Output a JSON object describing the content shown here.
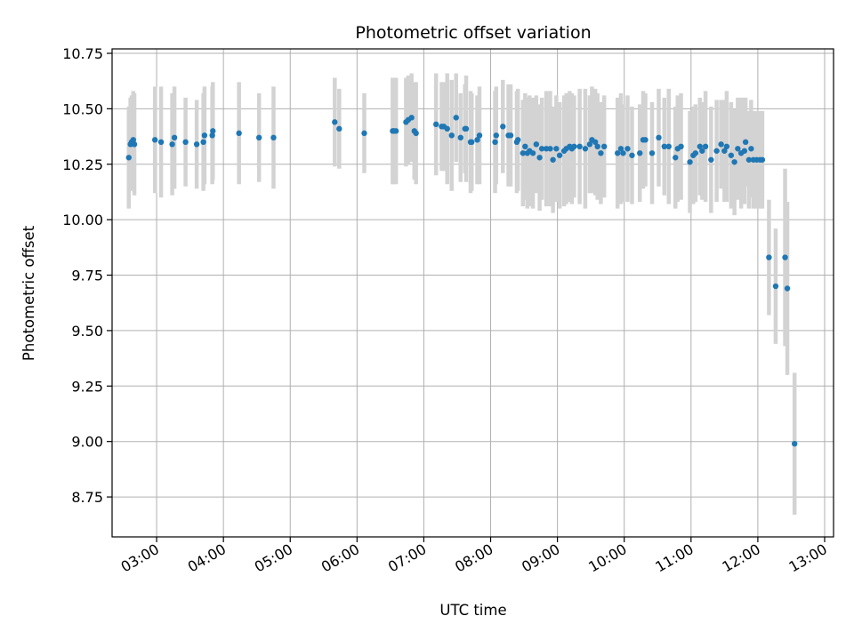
{
  "chart_data": {
    "type": "scatter",
    "title": "Photometric offset variation",
    "xlabel": "UTC time",
    "ylabel": "Photometric offset",
    "x_unit": "minutes since 00:00 UTC",
    "xlim": [
      140,
      788
    ],
    "ylim": [
      8.57,
      10.77
    ],
    "grid": true,
    "x_ticks": [
      {
        "value": 180,
        "label": "03:00"
      },
      {
        "value": 240,
        "label": "04:00"
      },
      {
        "value": 300,
        "label": "05:00"
      },
      {
        "value": 360,
        "label": "06:00"
      },
      {
        "value": 420,
        "label": "07:00"
      },
      {
        "value": 480,
        "label": "08:00"
      },
      {
        "value": 540,
        "label": "09:00"
      },
      {
        "value": 600,
        "label": "10:00"
      },
      {
        "value": 660,
        "label": "11:00"
      },
      {
        "value": 720,
        "label": "12:00"
      },
      {
        "value": 780,
        "label": "13:00"
      }
    ],
    "y_ticks": [
      {
        "value": 8.75,
        "label": "8.75"
      },
      {
        "value": 9.0,
        "label": "9.00"
      },
      {
        "value": 9.25,
        "label": "9.25"
      },
      {
        "value": 9.5,
        "label": "9.50"
      },
      {
        "value": 9.75,
        "label": "9.75"
      },
      {
        "value": 10.0,
        "label": "10.00"
      },
      {
        "value": 10.25,
        "label": "10.25"
      },
      {
        "value": 10.5,
        "label": "10.50"
      },
      {
        "value": 10.75,
        "label": "10.75"
      }
    ],
    "colors": {
      "point": "#1f77b4",
      "errorbar": "#d3d3d3",
      "grid": "#b0b0b0"
    },
    "series": [
      {
        "name": "offset",
        "x": [
          155.0,
          156.5,
          157.5,
          159.0,
          160.0,
          178.5,
          184.0,
          194.0,
          196.0,
          206.0,
          216.0,
          222.0,
          223.0,
          230.0,
          230.5,
          254.0,
          272.0,
          285.0,
          340.0,
          344.0,
          366.5,
          392.0,
          393.0,
          395.0,
          404.0,
          406.0,
          409.0,
          411.5,
          413.0,
          431.0,
          436.0,
          438.0,
          441.0,
          445.0,
          449.0,
          453.0,
          457.0,
          458.0,
          462.0,
          463.0,
          468.0,
          470.0,
          484.0,
          485.0,
          491.0,
          496.0,
          498.0,
          503.5,
          504.5,
          509.0,
          511.0,
          513.0,
          515.0,
          518.0,
          521.0,
          524.0,
          526.0,
          530.0,
          533.5,
          536.0,
          539.0,
          542.0,
          546.0,
          548.0,
          551.0,
          553.0,
          555.0,
          560.0,
          565.0,
          569.0,
          571.0,
          574.0,
          576.0,
          579.0,
          582.0,
          594.0,
          597.0,
          599.0,
          603.0,
          607.0,
          614.0,
          617.0,
          619.0,
          625.0,
          631.0,
          636.0,
          640.0,
          646.0,
          648.0,
          651.0,
          659.0,
          662.0,
          664.0,
          668.0,
          670.0,
          673.0,
          678.0,
          683.0,
          687.0,
          690.0,
          692.0,
          696.0,
          699.0,
          702.0,
          705.0,
          708.0,
          709.0,
          712.0,
          714.0,
          716.0,
          719.0,
          722.0,
          724.0,
          730.0,
          736.0,
          744.5,
          746.5,
          753.0
        ],
        "y": [
          10.28,
          10.34,
          10.35,
          10.36,
          10.34,
          10.36,
          10.35,
          10.34,
          10.37,
          10.35,
          10.34,
          10.35,
          10.38,
          10.38,
          10.4,
          10.39,
          10.37,
          10.37,
          10.44,
          10.41,
          10.39,
          10.4,
          10.4,
          10.4,
          10.44,
          10.45,
          10.46,
          10.4,
          10.39,
          10.43,
          10.42,
          10.42,
          10.41,
          10.38,
          10.46,
          10.37,
          10.41,
          10.41,
          10.35,
          10.35,
          10.36,
          10.38,
          10.35,
          10.38,
          10.42,
          10.38,
          10.38,
          10.35,
          10.36,
          10.3,
          10.33,
          10.3,
          10.31,
          10.3,
          10.34,
          10.28,
          10.32,
          10.32,
          10.32,
          10.27,
          10.32,
          10.29,
          10.31,
          10.32,
          10.33,
          10.32,
          10.33,
          10.33,
          10.32,
          10.34,
          10.36,
          10.35,
          10.33,
          10.3,
          10.33,
          10.3,
          10.32,
          10.3,
          10.32,
          10.29,
          10.3,
          10.36,
          10.36,
          10.3,
          10.37,
          10.33,
          10.33,
          10.28,
          10.32,
          10.33,
          10.26,
          10.29,
          10.3,
          10.33,
          10.31,
          10.33,
          10.27,
          10.31,
          10.34,
          10.31,
          10.33,
          10.29,
          10.26,
          10.32,
          10.3,
          10.31,
          10.35,
          10.27,
          10.32,
          10.27,
          10.27,
          10.27,
          10.27,
          9.83,
          9.7,
          9.83,
          9.69,
          8.99
        ],
        "yerr": [
          0.23,
          0.21,
          0.21,
          0.22,
          0.23,
          0.24,
          0.25,
          0.23,
          0.23,
          0.2,
          0.2,
          0.22,
          0.22,
          0.22,
          0.22,
          0.23,
          0.2,
          0.23,
          0.2,
          0.18,
          0.18,
          0.24,
          0.24,
          0.24,
          0.2,
          0.2,
          0.2,
          0.22,
          0.23,
          0.23,
          0.2,
          0.2,
          0.25,
          0.25,
          0.2,
          0.2,
          0.2,
          0.24,
          0.23,
          0.22,
          0.2,
          0.22,
          0.23,
          0.22,
          0.21,
          0.23,
          0.23,
          0.23,
          0.23,
          0.24,
          0.24,
          0.25,
          0.25,
          0.25,
          0.22,
          0.24,
          0.23,
          0.26,
          0.26,
          0.24,
          0.24,
          0.24,
          0.25,
          0.25,
          0.25,
          0.25,
          0.23,
          0.26,
          0.27,
          0.22,
          0.24,
          0.24,
          0.24,
          0.23,
          0.23,
          0.25,
          0.25,
          0.22,
          0.24,
          0.22,
          0.22,
          0.22,
          0.21,
          0.23,
          0.22,
          0.22,
          0.26,
          0.23,
          0.24,
          0.24,
          0.23,
          0.22,
          0.22,
          0.22,
          0.22,
          0.25,
          0.24,
          0.23,
          0.2,
          0.23,
          0.25,
          0.24,
          0.24,
          0.23,
          0.25,
          0.24,
          0.2,
          0.22,
          0.22,
          0.22,
          0.22,
          0.22,
          0.22,
          0.26,
          0.26,
          0.4,
          0.39,
          0.32
        ]
      }
    ]
  }
}
